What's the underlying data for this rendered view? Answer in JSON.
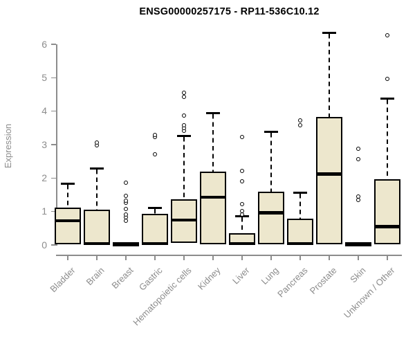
{
  "title": "ENSG00000257175 - RP11-536C10.12",
  "colors": {
    "background": "#FFFFFF",
    "box_fill": "#EDE7CD",
    "box_border": "#000000",
    "median": "#000000",
    "axis_text": "#8C8C8C",
    "title_text": "#000000"
  },
  "chart_data": {
    "type": "boxplot",
    "title": "ENSG00000257175 - RP11-536C10.12",
    "xlabel": "",
    "ylabel": "Expression",
    "ylim": [
      0,
      6
    ],
    "yticks": [
      0,
      1,
      2,
      3,
      4,
      5,
      6
    ],
    "grid": false,
    "legend": "none",
    "x_tick_label_rotation_deg": 45,
    "categories": [
      "Bladder",
      "Brain",
      "Breast",
      "Gastric",
      "Hematopoietic cells",
      "Kidney",
      "Liver",
      "Lung",
      "Pancreas",
      "Prostate",
      "Skin",
      "Unknown / Other"
    ],
    "series": [
      {
        "name": "Bladder",
        "whisker_low": 0.02,
        "q1": 0.02,
        "median": 0.72,
        "q3": 1.12,
        "whisker_high": 1.84,
        "outliers": []
      },
      {
        "name": "Brain",
        "whisker_low": 0.02,
        "q1": 0.02,
        "median": 0.04,
        "q3": 1.05,
        "whisker_high": 2.28,
        "outliers": [
          2.98,
          3.06
        ]
      },
      {
        "name": "Breast",
        "whisker_low": 0.0,
        "q1": 0.01,
        "median": 0.02,
        "q3": 0.03,
        "whisker_high": 0.03,
        "outliers": [
          0.72,
          0.82,
          0.91,
          1.08,
          1.26,
          1.32,
          1.47,
          1.86
        ]
      },
      {
        "name": "Gastric",
        "whisker_low": 0.02,
        "q1": 0.02,
        "median": 0.04,
        "q3": 0.94,
        "whisker_high": 1.1,
        "outliers": [
          2.71,
          3.22,
          3.3
        ]
      },
      {
        "name": "Hematopoietic cells",
        "whisker_low": 0.07,
        "q1": 0.07,
        "median": 0.75,
        "q3": 1.37,
        "whisker_high": 3.25,
        "outliers": [
          3.42,
          3.5,
          3.58,
          3.87,
          4.42,
          4.55
        ]
      },
      {
        "name": "Kidney",
        "whisker_low": 0.02,
        "q1": 0.02,
        "median": 1.43,
        "q3": 2.2,
        "whisker_high": 3.95,
        "outliers": []
      },
      {
        "name": "Liver",
        "whisker_low": 0.02,
        "q1": 0.02,
        "median": 0.04,
        "q3": 0.35,
        "whisker_high": 0.86,
        "outliers": [
          0.91,
          1.01,
          1.22,
          1.9,
          2.21,
          3.23
        ]
      },
      {
        "name": "Lung",
        "whisker_low": 0.02,
        "q1": 0.02,
        "median": 0.96,
        "q3": 1.6,
        "whisker_high": 3.38,
        "outliers": []
      },
      {
        "name": "Pancreas",
        "whisker_low": 0.02,
        "q1": 0.02,
        "median": 0.04,
        "q3": 0.78,
        "whisker_high": 1.57,
        "outliers": [
          3.58,
          3.72
        ]
      },
      {
        "name": "Prostate",
        "whisker_low": 0.02,
        "q1": 0.02,
        "median": 2.12,
        "q3": 3.82,
        "whisker_high": 6.35,
        "outliers": []
      },
      {
        "name": "Skin",
        "whisker_low": 0.0,
        "q1": 0.01,
        "median": 0.02,
        "q3": 0.03,
        "whisker_high": 0.03,
        "outliers": [
          1.35,
          1.45,
          2.56,
          2.88
        ]
      },
      {
        "name": "Unknown / Other",
        "whisker_low": 0.02,
        "q1": 0.02,
        "median": 0.55,
        "q3": 1.96,
        "whisker_high": 4.38,
        "outliers": [
          4.97,
          6.27
        ]
      }
    ]
  }
}
